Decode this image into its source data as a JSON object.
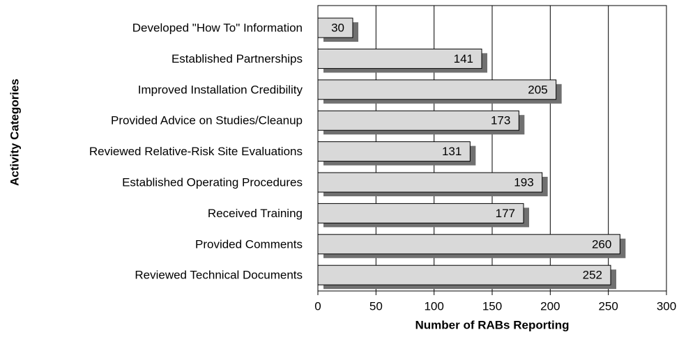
{
  "chart_data": {
    "type": "bar",
    "orientation": "horizontal",
    "x_label": "Number of RABs Reporting",
    "y_label": "Activity Categories",
    "categories": [
      "Developed \"How To\" Information",
      "Established Partnerships",
      "Improved Installation Credibility",
      "Provided Advice on Studies/Cleanup",
      "Reviewed Relative-Risk Site Evaluations",
      "Established Operating Procedures",
      "Received Training",
      "Provided Comments",
      "Reviewed Technical Documents"
    ],
    "values": [
      30,
      141,
      205,
      173,
      131,
      193,
      177,
      260,
      252
    ],
    "color": "#d9d9d9",
    "shadow_color": "#707070",
    "xlim": [
      0,
      300
    ],
    "xticks": [
      0,
      50,
      100,
      150,
      200,
      250,
      300
    ],
    "grid": true
  }
}
